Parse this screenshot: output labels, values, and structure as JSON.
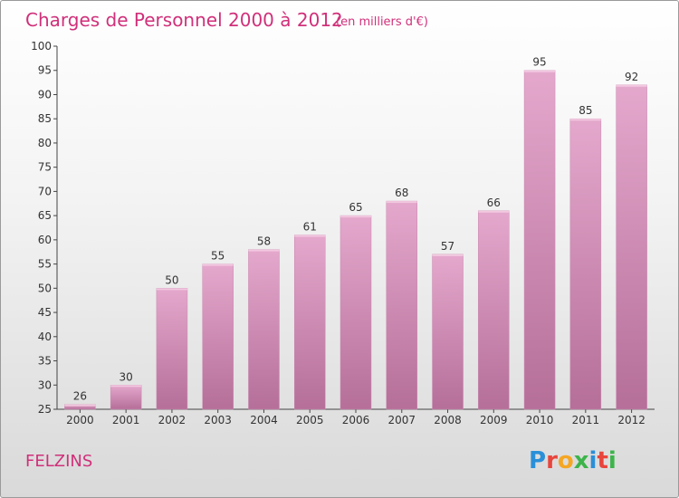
{
  "title": "Charges de Personnel 2000 à 2012",
  "subtitle": "(en milliers d'€)",
  "commune": "FELZINS",
  "logo": {
    "text": "Proxiti",
    "colors": [
      "#2a8fd8",
      "#e8453c",
      "#f5a623",
      "#3cb44b",
      "#2a8fd8",
      "#e8453c",
      "#3cb44b"
    ]
  },
  "colors": {
    "bar_top": "#e5a8cd",
    "bar_bottom": "#b56f99",
    "title": "#d0307a"
  },
  "chart_data": {
    "type": "bar",
    "title": "Charges de Personnel 2000 à 2012",
    "xlabel": "",
    "ylabel": "",
    "categories": [
      "2000",
      "2001",
      "2002",
      "2003",
      "2004",
      "2005",
      "2006",
      "2007",
      "2008",
      "2009",
      "2010",
      "2011",
      "2012"
    ],
    "values": [
      26,
      30,
      50,
      55,
      58,
      61,
      65,
      68,
      57,
      66,
      95,
      85,
      92
    ],
    "ylim": [
      25,
      100
    ],
    "yticks": [
      25,
      30,
      35,
      40,
      45,
      50,
      55,
      60,
      65,
      70,
      75,
      80,
      85,
      90,
      95,
      100
    ],
    "grid": false,
    "legend": "none"
  }
}
